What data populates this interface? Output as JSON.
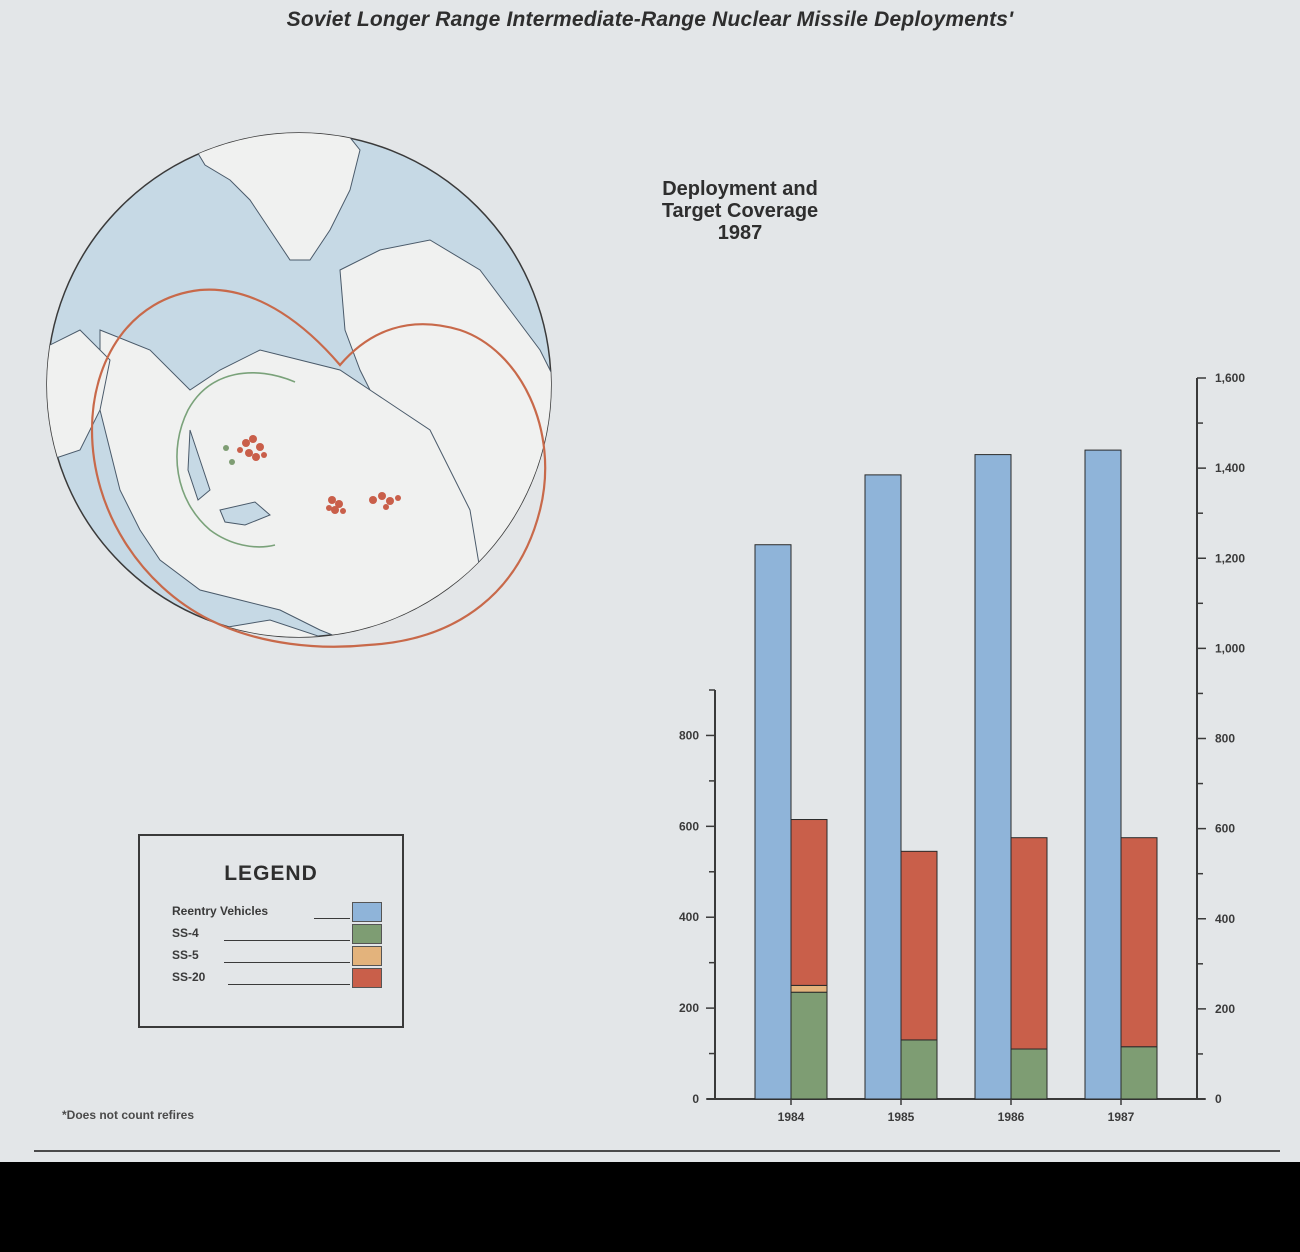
{
  "title": "Soviet Longer Range Intermediate-Range Nuclear Missile Deployments'",
  "map": {
    "caption_lines": [
      "Deployment and",
      "Target Coverage",
      "1987"
    ]
  },
  "legend": {
    "title": "LEGEND",
    "items": [
      {
        "label": "Reentry Vehicles",
        "color": "#8fb4d9"
      },
      {
        "label": "SS-4",
        "color": "#7e9d73"
      },
      {
        "label": "SS-5",
        "color": "#e3b37c"
      },
      {
        "label": "SS-20",
        "color": "#c95f4a"
      }
    ]
  },
  "footnote": "*Does not count refires",
  "colors": {
    "background": "#e3e6e8",
    "globe_ocean": "#c6d9e5",
    "globe_land": "#f0f1f0",
    "coverage_outline": "#c8694a",
    "ss4_arc": "#7aa27a"
  },
  "chart_data": {
    "type": "bar",
    "categories": [
      "1984",
      "1985",
      "1986",
      "1987"
    ],
    "series": [
      {
        "name": "Reentry Vehicles",
        "axis": "right",
        "values": [
          1230,
          1385,
          1430,
          1440
        ]
      },
      {
        "name": "SS-4",
        "axis": "left",
        "stack": "missiles",
        "values": [
          235,
          130,
          110,
          115
        ]
      },
      {
        "name": "SS-5",
        "axis": "left",
        "stack": "missiles",
        "values": [
          15,
          0,
          0,
          0
        ]
      },
      {
        "name": "SS-20",
        "axis": "left",
        "stack": "missiles",
        "values": [
          365,
          415,
          465,
          460
        ]
      }
    ],
    "left_axis": {
      "ylim": [
        0,
        900
      ],
      "ticks": [
        "0",
        "200",
        "400",
        "600",
        "800"
      ]
    },
    "right_axis": {
      "ylim": [
        0,
        1600
      ],
      "ticks": [
        "0",
        "200",
        "400",
        "600",
        "800",
        "1,000",
        "1,200",
        "1,400",
        "1,600"
      ]
    },
    "grid": false
  }
}
